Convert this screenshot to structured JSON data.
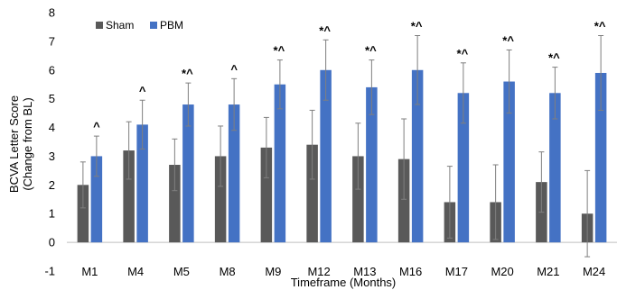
{
  "chart_data": {
    "type": "bar",
    "title": "",
    "xlabel": "Timeframe (Months)",
    "ylabel": [
      "BCVA Letter Score",
      "(Change from BL)"
    ],
    "ylim": [
      -1,
      8
    ],
    "yticks": [
      -1,
      0,
      1,
      2,
      3,
      4,
      5,
      6,
      7,
      8
    ],
    "grid": false,
    "legend_position": "top-left",
    "categories": [
      "M1",
      "M4",
      "M5",
      "M8",
      "M9",
      "M12",
      "M13",
      "M16",
      "M17",
      "M20",
      "M21",
      "M24"
    ],
    "series": [
      {
        "name": "Sham",
        "color": "#595959",
        "values": [
          2.0,
          3.2,
          2.7,
          3.0,
          3.3,
          3.4,
          3.0,
          2.9,
          1.4,
          1.4,
          2.1,
          1.0
        ],
        "error": [
          0.8,
          1.0,
          0.9,
          1.05,
          1.05,
          1.2,
          1.15,
          1.4,
          1.25,
          1.3,
          1.05,
          1.5
        ]
      },
      {
        "name": "PBM",
        "color": "#4472C4",
        "values": [
          3.0,
          4.1,
          4.8,
          4.8,
          5.5,
          6.0,
          5.4,
          6.0,
          5.2,
          5.6,
          5.2,
          5.9
        ],
        "error": [
          0.7,
          0.85,
          0.75,
          0.9,
          0.85,
          1.05,
          0.95,
          1.2,
          1.05,
          1.1,
          0.9,
          1.3
        ]
      }
    ],
    "annotations": [
      "^",
      "",
      "*^",
      "^",
      "*^",
      "*^",
      "*^",
      "*^",
      "*^",
      "*^",
      "*^",
      "*^"
    ],
    "annotations_m4": "^"
  }
}
